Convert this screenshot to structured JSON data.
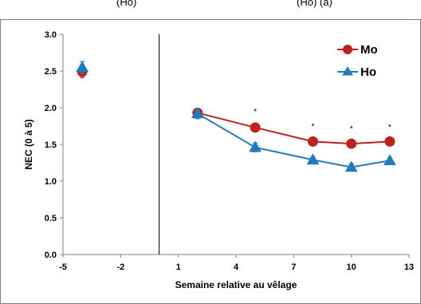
{
  "top_fragment": {
    "left": "(Ho)",
    "right": "(Ho) (a)"
  },
  "chart_data": {
    "type": "line",
    "xlabel": "Semaine relative au vêlage",
    "ylabel": "NEC  (0 à 5)",
    "xlim": [
      -5,
      13
    ],
    "ylim": [
      0.0,
      3.0
    ],
    "x_ticks": [
      -5,
      -2,
      1,
      4,
      7,
      10,
      13
    ],
    "x_tick_labels": [
      "-5",
      "-2",
      "1",
      "4",
      "7",
      "10",
      "13"
    ],
    "y_ticks": [
      0.0,
      0.5,
      1.0,
      1.5,
      2.0,
      2.5,
      3.0
    ],
    "y_tick_labels": [
      "0.0",
      "0.5",
      "1.0",
      "1.5",
      "2.0",
      "2.5",
      "3.0"
    ],
    "grid": false,
    "calving_line_x": 0,
    "legend_position": "top-right",
    "series": [
      {
        "name": "Mo",
        "color": "#c0201f",
        "marker": "circle",
        "isolated_point": {
          "x": -4,
          "y": 2.49,
          "err": 0.08
        },
        "x": [
          2,
          5,
          8,
          10,
          12
        ],
        "y": [
          1.93,
          1.73,
          1.54,
          1.51,
          1.54
        ],
        "err": [
          0.05,
          0.05,
          0.04,
          0.04,
          0.03
        ]
      },
      {
        "name": "Ho",
        "color": "#1f7ac0",
        "marker": "triangle",
        "isolated_point": {
          "x": -4,
          "y": 2.55,
          "err": 0.08
        },
        "x": [
          2,
          5,
          8,
          10,
          12
        ],
        "y": [
          1.92,
          1.46,
          1.29,
          1.19,
          1.28
        ],
        "err": [
          0.07,
          0.06,
          0.04,
          0.05,
          0.03
        ]
      }
    ],
    "significance": [
      {
        "x": 5,
        "label": "*"
      },
      {
        "x": 8,
        "label": "*"
      },
      {
        "x": 10,
        "label": "*"
      },
      {
        "x": 12,
        "label": "*"
      }
    ]
  }
}
